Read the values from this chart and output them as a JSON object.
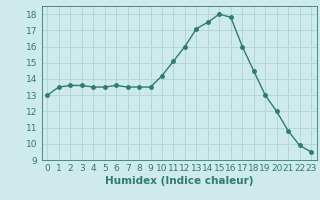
{
  "x": [
    0,
    1,
    2,
    3,
    4,
    5,
    6,
    7,
    8,
    9,
    10,
    11,
    12,
    13,
    14,
    15,
    16,
    17,
    18,
    19,
    20,
    21,
    22,
    23
  ],
  "y": [
    13.0,
    13.5,
    13.6,
    13.6,
    13.5,
    13.5,
    13.6,
    13.5,
    13.5,
    13.5,
    14.2,
    15.1,
    16.0,
    17.1,
    17.5,
    18.0,
    17.8,
    16.0,
    14.5,
    13.0,
    12.0,
    10.8,
    9.9,
    9.5
  ],
  "line_color": "#2e7d6e",
  "marker": "o",
  "marker_size": 2.5,
  "line_width": 1.0,
  "xlabel": "Humidex (Indice chaleur)",
  "xlim": [
    -0.5,
    23.5
  ],
  "ylim": [
    9,
    18.5
  ],
  "yticks": [
    9,
    10,
    11,
    12,
    13,
    14,
    15,
    16,
    17,
    18
  ],
  "xticks": [
    0,
    1,
    2,
    3,
    4,
    5,
    6,
    7,
    8,
    9,
    10,
    11,
    12,
    13,
    14,
    15,
    16,
    17,
    18,
    19,
    20,
    21,
    22,
    23
  ],
  "bg_color": "#ceeaea",
  "grid_color": "#b0d8d8",
  "axis_label_fontsize": 7.5,
  "tick_fontsize": 6.5
}
